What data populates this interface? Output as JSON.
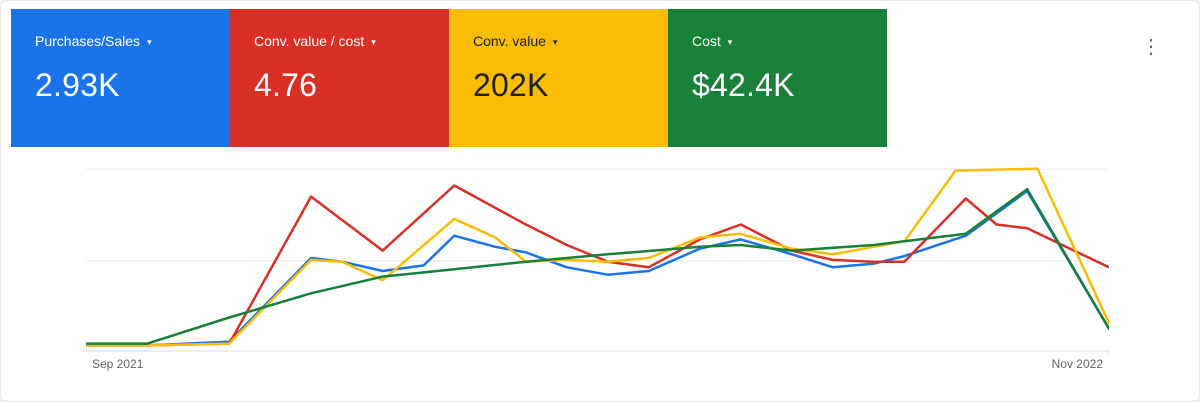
{
  "ui": {
    "caret_icon": "▾",
    "more_icon": "⋮"
  },
  "cards": [
    {
      "label": "Purchases/Sales",
      "value": "2.93K",
      "color": "#1a73e8",
      "text_color": "#ffffff"
    },
    {
      "label": "Conv. value / cost",
      "value": "4.76",
      "color": "#d93025",
      "text_color": "#ffffff"
    },
    {
      "label": "Conv. value",
      "value": "202K",
      "color": "#fbbc04",
      "text_color": "#202124"
    },
    {
      "label": "Cost",
      "value": "$42.4K",
      "color": "#188038",
      "text_color": "#ffffff"
    }
  ],
  "chart_data": {
    "type": "line",
    "title": "",
    "x_start_label": "Sep 2021",
    "x_end_label": "Nov 2022",
    "y_axis_labels_visible": false,
    "grid": "horizontal-only",
    "gridline_values": [
      0,
      48.4,
      97.8
    ],
    "value_scale": "percent-of-plot-height (0 = baseline, 100 = top gridline area)",
    "series": [
      {
        "name": "Purchases/Sales",
        "color": "#1a73e8",
        "points": [
          [
            0,
            3
          ],
          [
            6,
            3
          ],
          [
            14,
            5
          ],
          [
            22,
            50
          ],
          [
            25,
            48
          ],
          [
            29,
            43
          ],
          [
            33,
            46
          ],
          [
            36,
            62
          ],
          [
            40,
            56
          ],
          [
            43,
            53
          ],
          [
            47,
            45
          ],
          [
            51,
            41
          ],
          [
            55,
            43
          ],
          [
            60,
            55
          ],
          [
            64,
            60
          ],
          [
            69,
            52
          ],
          [
            73,
            45
          ],
          [
            77,
            47
          ],
          [
            80,
            51
          ],
          [
            86,
            62
          ],
          [
            92,
            86
          ],
          [
            100,
            12
          ]
        ]
      },
      {
        "name": "Conv. value / cost",
        "color": "#d93025",
        "points": [
          [
            0,
            3
          ],
          [
            6,
            3
          ],
          [
            14,
            4
          ],
          [
            22,
            83
          ],
          [
            29,
            54
          ],
          [
            36,
            89
          ],
          [
            43,
            68
          ],
          [
            47,
            57
          ],
          [
            51,
            48
          ],
          [
            55,
            45
          ],
          [
            60,
            60
          ],
          [
            64,
            68
          ],
          [
            69,
            54
          ],
          [
            73,
            49
          ],
          [
            77,
            48
          ],
          [
            80,
            48
          ],
          [
            86,
            82
          ],
          [
            89,
            68
          ],
          [
            92,
            66
          ],
          [
            100,
            45
          ]
        ]
      },
      {
        "name": "Conv. value",
        "color": "#fbbc04",
        "points": [
          [
            0,
            3
          ],
          [
            6,
            3
          ],
          [
            14,
            4
          ],
          [
            22,
            49
          ],
          [
            25,
            48
          ],
          [
            29,
            38
          ],
          [
            36,
            71
          ],
          [
            40,
            61
          ],
          [
            43,
            48
          ],
          [
            47,
            49
          ],
          [
            51,
            48
          ],
          [
            55,
            50
          ],
          [
            60,
            61
          ],
          [
            64,
            63
          ],
          [
            69,
            55
          ],
          [
            73,
            52
          ],
          [
            77,
            56
          ],
          [
            80,
            59
          ],
          [
            85,
            97
          ],
          [
            93,
            98
          ],
          [
            100,
            15
          ]
        ]
      },
      {
        "name": "Cost",
        "color": "#188038",
        "points": [
          [
            0,
            4
          ],
          [
            6,
            4
          ],
          [
            14,
            18
          ],
          [
            22,
            31
          ],
          [
            29,
            40
          ],
          [
            36,
            44
          ],
          [
            43,
            48
          ],
          [
            51,
            52
          ],
          [
            60,
            56
          ],
          [
            64,
            57
          ],
          [
            69,
            54
          ],
          [
            77,
            57
          ],
          [
            80,
            59
          ],
          [
            86,
            63
          ],
          [
            92,
            87
          ],
          [
            100,
            12
          ]
        ]
      }
    ]
  }
}
